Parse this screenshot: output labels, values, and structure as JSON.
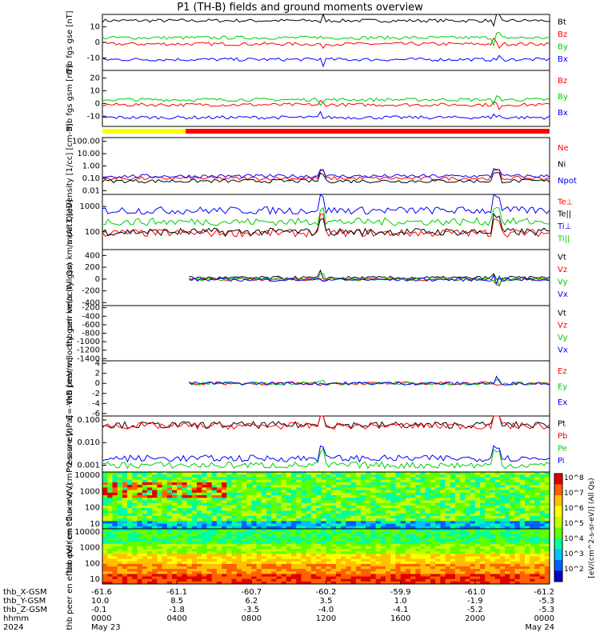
{
  "title": "P1 (TH-B) fields and ground moments overview",
  "colors": {
    "black": "#000000",
    "red": "#ff0000",
    "green": "#00cc00",
    "blue": "#0000ff",
    "yellow": "#ffff00"
  },
  "ephemeris": {
    "row_labels": [
      "thb_X-GSM",
      "thb_Y-GSM",
      "thb_Z-GSM",
      "hhmm",
      "2024"
    ],
    "columns": [
      {
        "x": "-61.6",
        "y": "10.0",
        "z": "-0.1",
        "time": "0000",
        "date": "May 23"
      },
      {
        "x": "-61.1",
        "y": "8.5",
        "z": "-1.8",
        "time": "0400",
        "date": ""
      },
      {
        "x": "-60.7",
        "y": "6.2",
        "z": "-3.5",
        "time": "0800",
        "date": ""
      },
      {
        "x": "-60.2",
        "y": "3.5",
        "z": "-4.0",
        "time": "1200",
        "date": ""
      },
      {
        "x": "-59.9",
        "y": "1.0",
        "z": "-4.1",
        "time": "1600",
        "date": ""
      },
      {
        "x": "-61.0",
        "y": "-1.9",
        "z": "-5.2",
        "time": "2000",
        "date": ""
      },
      {
        "x": "-61.2",
        "y": "-5.3",
        "z": "-5.3",
        "time": "0000",
        "date": "May 24"
      }
    ]
  },
  "chart_data": [
    {
      "type": "line",
      "ylabel": "thb fgs gse [nT]",
      "ylim": [
        -18,
        18
      ],
      "yticks": [
        "-10",
        "0",
        "10"
      ],
      "series": [
        {
          "name": "Bt",
          "color": "#000000",
          "base": 14
        },
        {
          "name": "Bz",
          "color": "#ff0000",
          "base": -1
        },
        {
          "name": "By",
          "color": "#00cc00",
          "base": 3
        },
        {
          "name": "Bx",
          "color": "#0000ff",
          "base": -11
        }
      ]
    },
    {
      "type": "line",
      "ylabel": "thb fgs gsm [nT]",
      "ylim": [
        -18,
        26
      ],
      "yticks": [
        "-10",
        "0",
        "10",
        "20"
      ],
      "series": [
        {
          "name": "Bz",
          "color": "#ff0000",
          "base": -1
        },
        {
          "name": "By",
          "color": "#00cc00",
          "base": 3
        },
        {
          "name": "Bx",
          "color": "#0000ff",
          "base": -11
        }
      ]
    },
    {
      "type": "line",
      "log": true,
      "ylabel": "Density [1/cc] [cm-3]",
      "ylim": [
        0.005,
        200
      ],
      "yticks": [
        "0.01",
        "0.10",
        "1.00",
        "10.00",
        "100.00"
      ],
      "series": [
        {
          "name": "Ne",
          "color": "#ff0000",
          "base": 0.1
        },
        {
          "name": "Ni",
          "color": "#000000",
          "base": 0.06
        },
        {
          "name": "Npot",
          "color": "#0000ff",
          "base": 0.15
        }
      ]
    },
    {
      "type": "line",
      "log": true,
      "ylabel": "moat3 [eV]",
      "ylim": [
        20,
        3000
      ],
      "yticks": [
        "100",
        "1000"
      ],
      "series": [
        {
          "name": "Te⊥",
          "color": "#ff0000",
          "base": 90
        },
        {
          "name": "Te||",
          "color": "#000000",
          "base": 100
        },
        {
          "name": "Ti⊥",
          "color": "#0000ff",
          "base": 700
        },
        {
          "name": "Ti||",
          "color": "#00cc00",
          "base": 250
        }
      ]
    },
    {
      "type": "line",
      "ylabel": "thb peir velocity gsm km/s (All Qs)",
      "ylim": [
        -450,
        500
      ],
      "yticks": [
        "-400",
        "-200",
        "0",
        "200",
        "400"
      ],
      "series": [
        {
          "name": "Vt",
          "color": "#000000",
          "base": 20
        },
        {
          "name": "Vz",
          "color": "#ff0000",
          "base": 0
        },
        {
          "name": "Vy",
          "color": "#00cc00",
          "base": 0
        },
        {
          "name": "Vx",
          "color": "#0000ff",
          "base": -10
        }
      ]
    },
    {
      "type": "line",
      "ylabel": "thb peer velocity gsm km/s (All Qs)",
      "ylim": [
        -1450,
        -150
      ],
      "yticks": [
        "-1400",
        "-1200",
        "-1000",
        "-800",
        "-600",
        "-400",
        "-200"
      ],
      "series": [
        {
          "name": "Vt",
          "color": "#000000"
        },
        {
          "name": "Vz",
          "color": "#ff0000"
        },
        {
          "name": "Vy",
          "color": "#00cc00"
        },
        {
          "name": "Vx",
          "color": "#0000ff"
        }
      ]
    },
    {
      "type": "line",
      "ylabel": "E=-VxB [mV/m]",
      "ylim": [
        -6.5,
        4.5
      ],
      "yticks": [
        "-6",
        "-4",
        "-2",
        "0",
        "2",
        "4"
      ],
      "series": [
        {
          "name": "Ez",
          "color": "#ff0000",
          "base": 0
        },
        {
          "name": "Ey",
          "color": "#00cc00",
          "base": 0
        },
        {
          "name": "Ex",
          "color": "#0000ff",
          "base": 0
        }
      ]
    },
    {
      "type": "line",
      "log": true,
      "ylabel": "Pressure [nPa]",
      "ylim": [
        0.0005,
        0.15
      ],
      "yticks": [
        "0.001",
        "0.010",
        "0.100"
      ],
      "series": [
        {
          "name": "Pt",
          "color": "#000000",
          "base": 0.06
        },
        {
          "name": "Pb",
          "color": "#ff0000",
          "base": 0.055
        },
        {
          "name": "Pe",
          "color": "#00cc00",
          "base": 0.001
        },
        {
          "name": "Pi",
          "color": "#0000ff",
          "base": 0.002
        }
      ]
    },
    {
      "type": "heatmap",
      "ylabel": "thb peir en eflux eV/ (cm^2-s-sr-eV)",
      "yticks": [
        "10",
        "100",
        "1000",
        "10000"
      ]
    },
    {
      "type": "heatmap",
      "ylabel": "thb peer en eflux eV/ (cm^2-s-sr-eV)",
      "yticks": [
        "10",
        "100",
        "1000",
        "10000"
      ]
    }
  ],
  "colorbar": {
    "label": "[eV/(cm^2-s-sr-eV)] (All Qs)",
    "ticks": [
      "10^8",
      "10^7",
      "10^6",
      "10^5",
      "10^4",
      "10^3",
      "10^2"
    ]
  }
}
